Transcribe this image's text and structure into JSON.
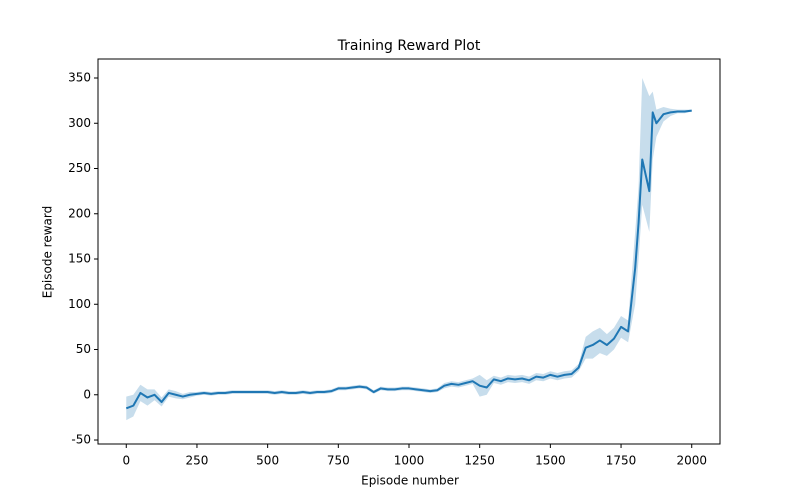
{
  "chart_data": {
    "type": "line",
    "title": "Training Reward Plot",
    "x_label": "Episode number",
    "y_label": "Episode reward",
    "x": [
      0,
      25,
      50,
      75,
      100,
      125,
      150,
      175,
      200,
      225,
      250,
      275,
      300,
      325,
      350,
      375,
      400,
      425,
      450,
      475,
      500,
      525,
      550,
      575,
      600,
      625,
      650,
      675,
      700,
      725,
      750,
      775,
      800,
      825,
      850,
      875,
      900,
      925,
      950,
      975,
      1000,
      1025,
      1050,
      1075,
      1100,
      1125,
      1150,
      1175,
      1200,
      1225,
      1250,
      1275,
      1300,
      1325,
      1350,
      1375,
      1400,
      1425,
      1450,
      1475,
      1500,
      1525,
      1550,
      1575,
      1600,
      1625,
      1650,
      1675,
      1700,
      1725,
      1750,
      1775,
      1800,
      1812,
      1825,
      1850,
      1862,
      1875,
      1900,
      1925,
      1950,
      1975,
      2000
    ],
    "series": [
      {
        "color": "#1f77b4",
        "values": [
          -15,
          -12,
          2,
          -3,
          0,
          -8,
          2,
          0,
          -2,
          0,
          1,
          2,
          1,
          2,
          2,
          3,
          3,
          3,
          3,
          3,
          3,
          2,
          3,
          2,
          2,
          3,
          2,
          3,
          3,
          4,
          7,
          7,
          8,
          9,
          8,
          3,
          7,
          6,
          6,
          7,
          7,
          6,
          5,
          4,
          5,
          10,
          12,
          11,
          13,
          15,
          10,
          8,
          17,
          15,
          18,
          17,
          18,
          16,
          20,
          19,
          22,
          20,
          22,
          23,
          30,
          52,
          55,
          60,
          55,
          62,
          75,
          70,
          140,
          190,
          260,
          225,
          312,
          300,
          310,
          312,
          313,
          313,
          314
        ],
        "ci_lower": [
          -28,
          -24,
          -7,
          -12,
          -6,
          -13,
          -2,
          -4,
          -5,
          -3,
          -1,
          0,
          -1,
          0,
          0,
          1,
          1,
          1,
          1,
          1,
          1,
          0,
          1,
          0,
          0,
          1,
          0,
          1,
          1,
          2,
          5,
          5,
          6,
          7,
          6,
          1,
          5,
          4,
          4,
          5,
          5,
          4,
          3,
          2,
          3,
          7,
          9,
          8,
          10,
          12,
          -2,
          0,
          13,
          11,
          14,
          13,
          14,
          12,
          16,
          15,
          18,
          16,
          18,
          19,
          26,
          40,
          40,
          46,
          43,
          50,
          63,
          58,
          100,
          150,
          210,
          180,
          260,
          285,
          302,
          308,
          311,
          311,
          313
        ],
        "ci_upper": [
          -2,
          0,
          11,
          6,
          6,
          -3,
          6,
          4,
          1,
          3,
          3,
          4,
          3,
          4,
          4,
          5,
          5,
          5,
          5,
          5,
          5,
          4,
          5,
          4,
          4,
          5,
          4,
          5,
          5,
          6,
          9,
          9,
          10,
          11,
          10,
          5,
          9,
          8,
          8,
          9,
          9,
          8,
          7,
          6,
          7,
          13,
          15,
          14,
          16,
          18,
          22,
          16,
          21,
          19,
          22,
          21,
          22,
          20,
          24,
          23,
          26,
          24,
          26,
          27,
          34,
          64,
          70,
          74,
          67,
          74,
          87,
          82,
          180,
          230,
          350,
          330,
          335,
          315,
          318,
          316,
          315,
          315,
          315
        ]
      }
    ],
    "xlim": [
      -100,
      2100
    ],
    "xticks": [
      0,
      250,
      500,
      750,
      1000,
      1250,
      1500,
      1750,
      2000
    ],
    "ylim": [
      -54.4,
      371
    ],
    "yticks": [
      -50,
      0,
      50,
      100,
      150,
      200,
      250,
      300,
      350
    ]
  }
}
